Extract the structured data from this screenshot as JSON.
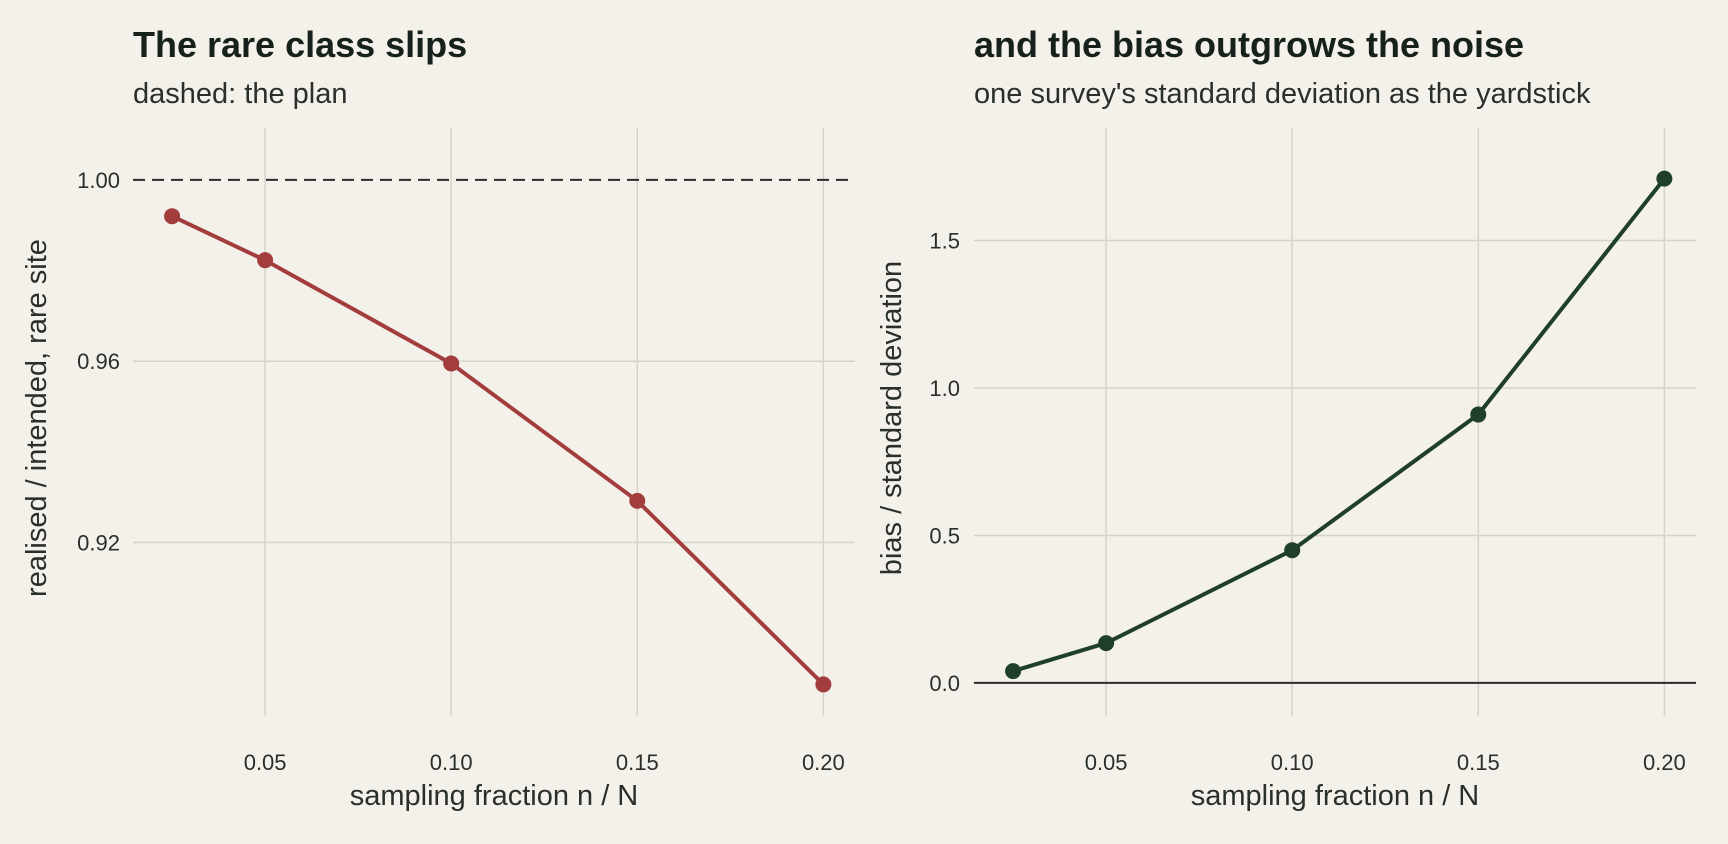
{
  "chart_data": [
    {
      "type": "line",
      "title": "The rare class slips",
      "subtitle": "dashed: the plan",
      "xlabel": "sampling fraction n / N",
      "ylabel": "realised / intended, rare site",
      "x": [
        0.025,
        0.05,
        0.1,
        0.15,
        0.2
      ],
      "series": [
        {
          "values": [
            0.992,
            0.9823,
            0.9595,
            0.9292,
            0.8887
          ]
        }
      ],
      "reference_line": {
        "y": 1.0,
        "style": "dashed"
      },
      "xlim": [
        0.0145,
        0.2085
      ],
      "ylim": [
        0.8835,
        1.0055
      ],
      "xticks": [
        "0.05",
        "0.10",
        "0.15",
        "0.20"
      ],
      "xtick_values": [
        0.05,
        0.1,
        0.15,
        0.2
      ],
      "yticks": [
        "0.92",
        "0.96",
        "1.00"
      ],
      "ytick_values": [
        0.92,
        0.96,
        1.0
      ],
      "grid": true,
      "color": "#a33d3d"
    },
    {
      "type": "line",
      "title": "and the bias outgrows the noise",
      "subtitle": "one survey's standard deviation as the yardstick",
      "xlabel": "sampling fraction n / N",
      "ylabel": "bias / standard deviation",
      "x": [
        0.025,
        0.05,
        0.1,
        0.15,
        0.2
      ],
      "series": [
        {
          "values": [
            0.04,
            0.135,
            0.45,
            0.91,
            1.71
          ]
        }
      ],
      "reference_line": {
        "y": 0.0,
        "style": "solid"
      },
      "xlim": [
        0.0145,
        0.2085
      ],
      "ylim": [
        -0.085,
        1.79
      ],
      "xticks": [
        "0.05",
        "0.10",
        "0.15",
        "0.20"
      ],
      "xtick_values": [
        0.05,
        0.1,
        0.15,
        0.2
      ],
      "yticks": [
        "0.0",
        "0.5",
        "1.0",
        "1.5"
      ],
      "ytick_values": [
        0.0,
        0.5,
        1.0,
        1.5
      ],
      "grid": true,
      "color": "#1f3f2c"
    }
  ],
  "colors": {
    "background": "#f3f1ea",
    "grid": "#d5d4c9",
    "reference": "#2b2b2b"
  }
}
